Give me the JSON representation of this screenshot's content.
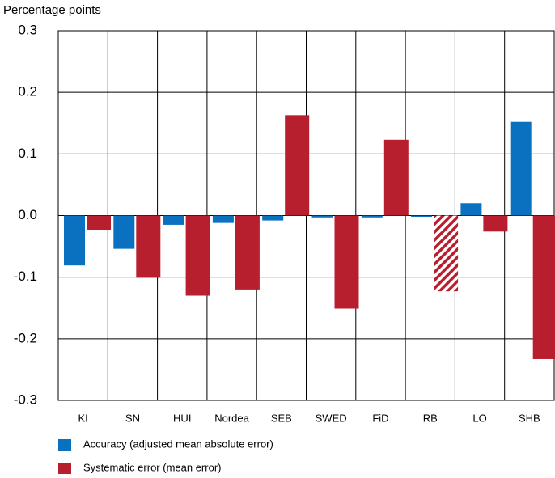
{
  "chart_data": {
    "type": "bar",
    "y_label": "Percentage points",
    "categories": [
      "KI",
      "SN",
      "HUI",
      "Nordea",
      "SEB",
      "SWED",
      "FiD",
      "RB",
      "LO",
      "SHB"
    ],
    "series": [
      {
        "name": "Accuracy (adjusted mean absolute error)",
        "color": "#0a71c1",
        "values": [
          -0.081,
          -0.054,
          -0.015,
          -0.012,
          -0.008,
          -0.003,
          -0.003,
          -0.002,
          0.02,
          0.152
        ]
      },
      {
        "name": "Systematic error (mean error)",
        "color": "#b81f2e",
        "values": [
          -0.023,
          -0.101,
          -0.13,
          -0.12,
          0.163,
          -0.151,
          0.123,
          -0.123,
          -0.026,
          -0.233
        ],
        "hatched": [
          false,
          false,
          false,
          false,
          false,
          false,
          false,
          true,
          false,
          false
        ]
      }
    ],
    "ylim": [
      -0.3,
      0.3
    ],
    "yticks": [
      -0.3,
      -0.2,
      -0.1,
      {
        "value": 0,
        "label": "0.0"
      },
      0.1,
      0.2,
      0.3
    ],
    "grid": true
  }
}
